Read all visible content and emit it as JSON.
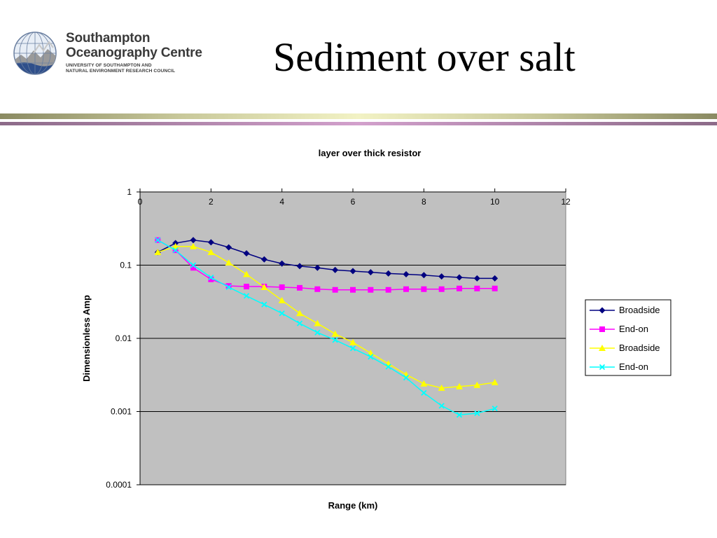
{
  "logo": {
    "line1": "Southampton",
    "line2": "Oceanography Centre",
    "line3": "UNIVERSITY OF SOUTHAMPTON AND",
    "line4": "NATURAL ENVIRONMENT RESEARCH COUNCIL"
  },
  "slide": {
    "title": "Sediment over salt"
  },
  "chart_data": {
    "type": "line",
    "title": "layer over thick resistor",
    "xlabel": "Range (km)",
    "ylabel": "Dimensionless Amp",
    "xlim": [
      0,
      12
    ],
    "ylim": [
      0.0001,
      1
    ],
    "y_scale": "log",
    "x_ticks": [
      "0",
      "2",
      "4",
      "6",
      "8",
      "10",
      "12"
    ],
    "y_ticks": [
      "1",
      "0.1",
      "0.01",
      "0.001",
      "0.0001"
    ],
    "x_axis_position": "top",
    "grid": "horizontal major",
    "plot_background": "#c0c0c0",
    "legend_position": "right",
    "x": [
      0.5,
      1,
      1.5,
      2,
      2.5,
      3,
      3.5,
      4,
      4.5,
      5,
      5.5,
      6,
      6.5,
      7,
      7.5,
      8,
      8.5,
      9,
      9.5,
      10
    ],
    "series": [
      {
        "name": "Broadside",
        "color": "#000080",
        "marker": "diamond",
        "values": [
          0.15,
          0.2,
          0.22,
          0.205,
          0.175,
          0.145,
          0.12,
          0.105,
          0.097,
          0.092,
          0.086,
          0.083,
          0.08,
          0.077,
          0.075,
          0.073,
          0.07,
          0.068,
          0.066,
          0.066
        ]
      },
      {
        "name": "End-on",
        "color": "#ff00ff",
        "marker": "square",
        "values": [
          0.22,
          0.16,
          0.092,
          0.064,
          0.052,
          0.051,
          0.051,
          0.05,
          0.049,
          0.047,
          0.046,
          0.046,
          0.046,
          0.046,
          0.047,
          0.047,
          0.047,
          0.048,
          0.048,
          0.048
        ]
      },
      {
        "name": "Broadside",
        "color": "#ffff00",
        "marker": "triangle",
        "values": [
          0.15,
          0.18,
          0.18,
          0.15,
          0.108,
          0.075,
          0.05,
          0.033,
          0.022,
          0.016,
          0.0115,
          0.0088,
          0.0063,
          0.0045,
          0.0032,
          0.0024,
          0.0021,
          0.0022,
          0.0023,
          0.0025
        ]
      },
      {
        "name": "End-on",
        "color": "#00ffff",
        "marker": "x",
        "values": [
          0.22,
          0.16,
          0.1,
          0.068,
          0.05,
          0.038,
          0.029,
          0.022,
          0.016,
          0.012,
          0.0095,
          0.0073,
          0.0056,
          0.0041,
          0.0029,
          0.0018,
          0.0012,
          0.0009,
          0.00095,
          0.0011
        ]
      }
    ]
  }
}
